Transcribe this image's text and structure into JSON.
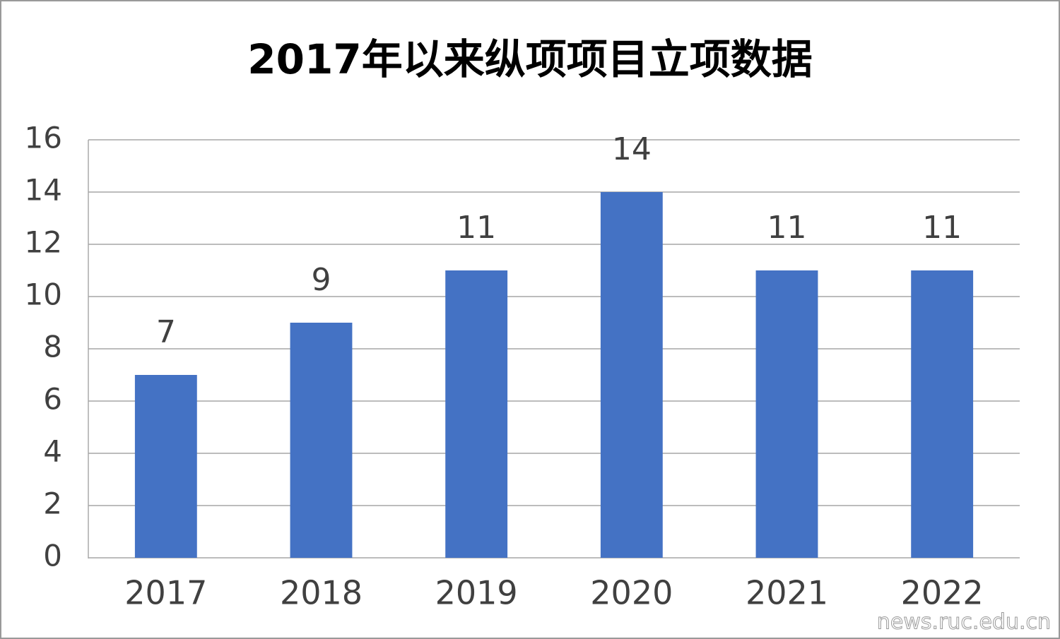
{
  "chart_data": {
    "type": "bar",
    "title": "2017年以来纵项项目立项数据",
    "categories": [
      "2017",
      "2018",
      "2019",
      "2020",
      "2021",
      "2022"
    ],
    "values": [
      7,
      9,
      11,
      14,
      11,
      11
    ],
    "color": "#4472c4",
    "ylim": [
      0,
      16
    ],
    "yticks": [
      0,
      2,
      4,
      6,
      8,
      10,
      12,
      14,
      16
    ],
    "grid": true,
    "watermark": "news.ruc.edu.cn"
  }
}
